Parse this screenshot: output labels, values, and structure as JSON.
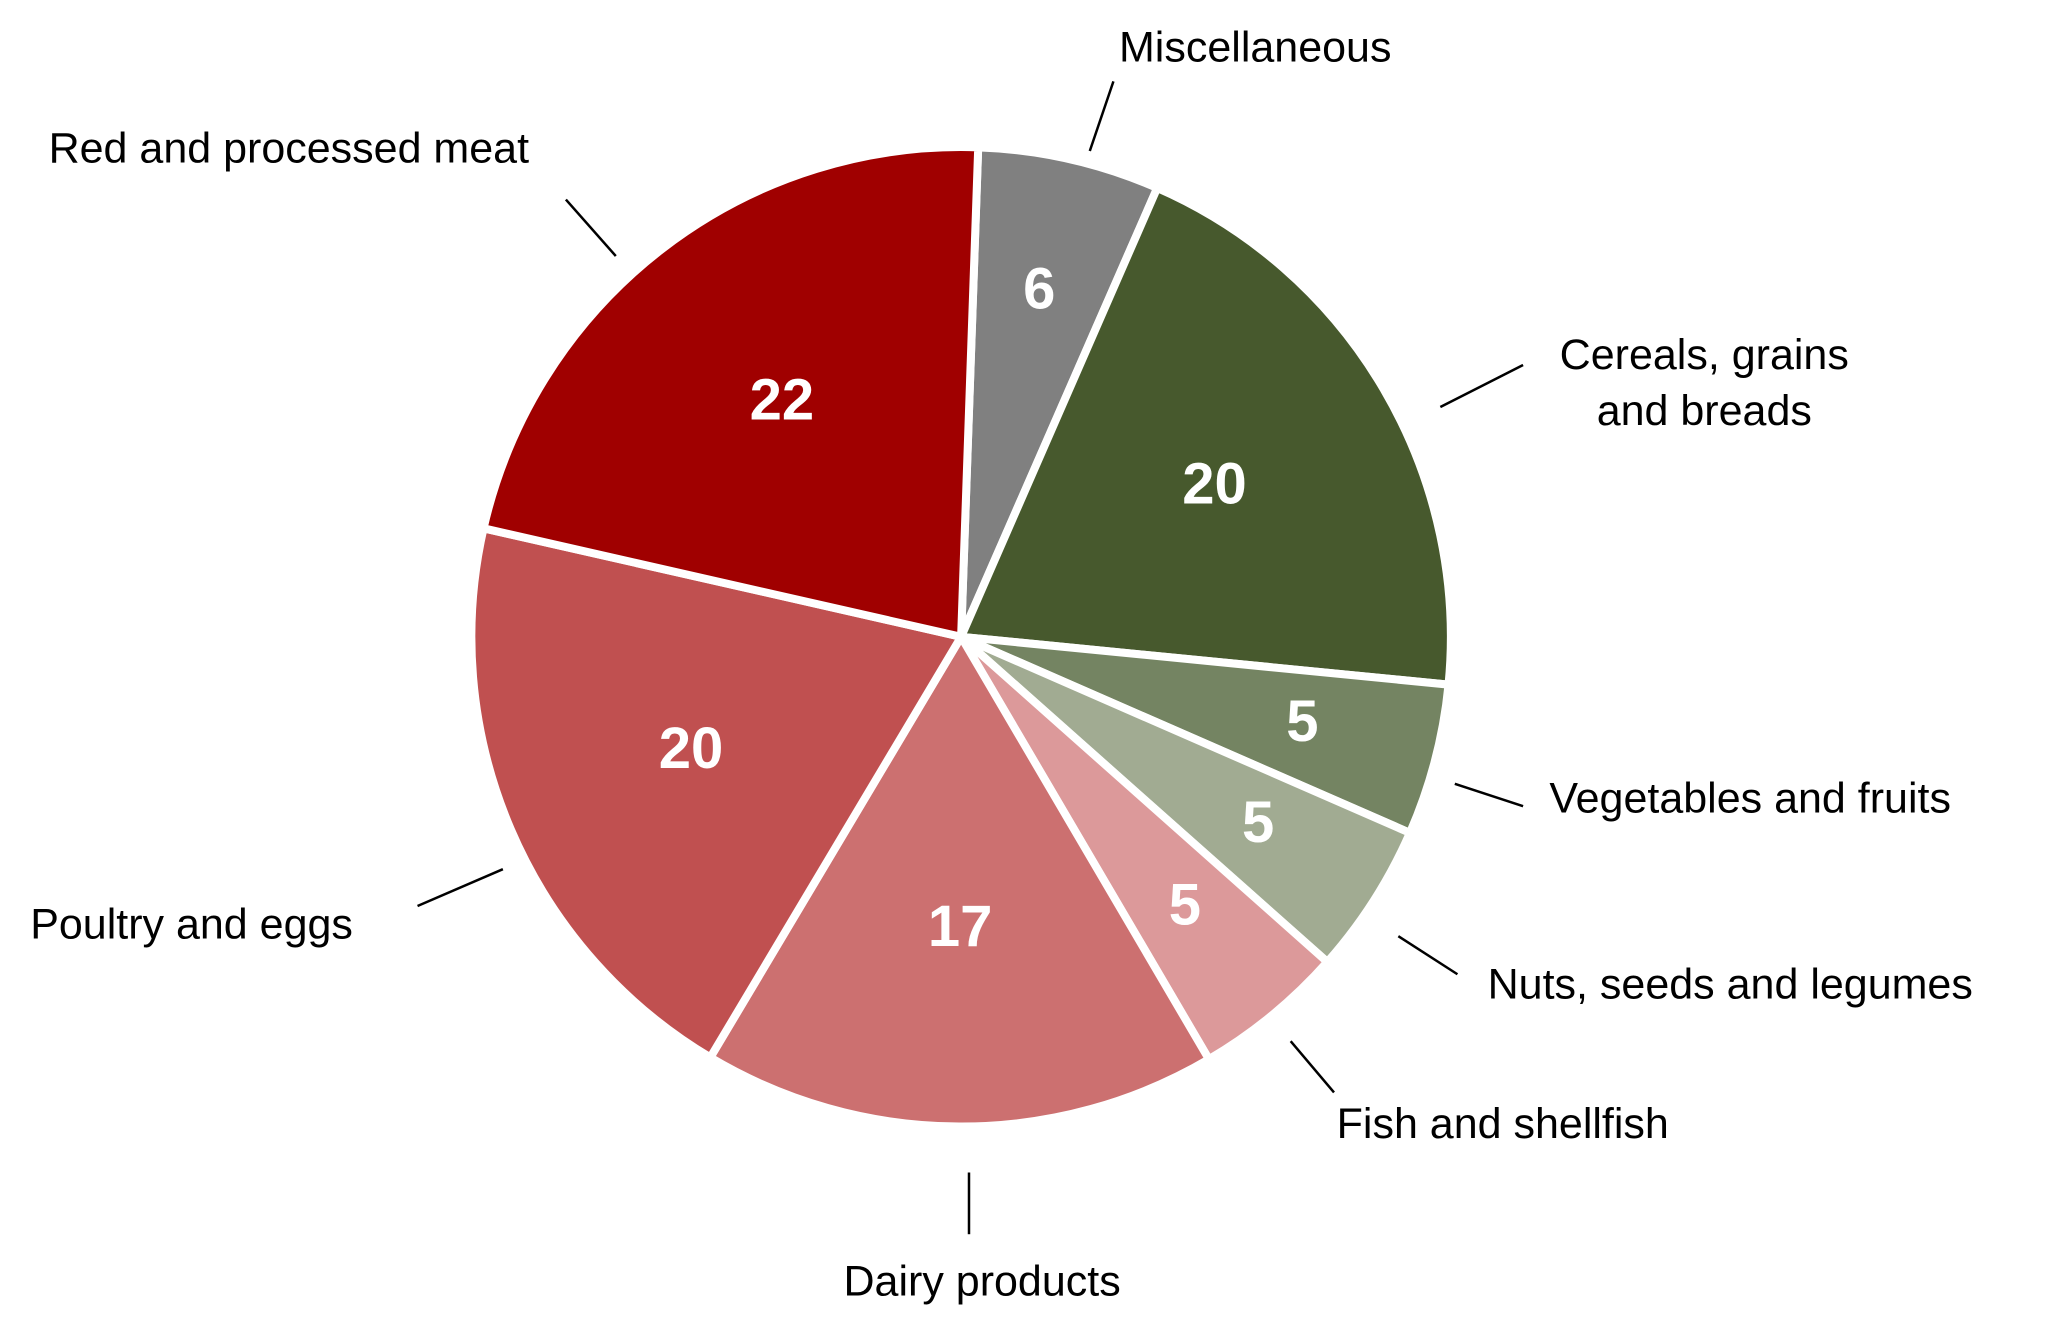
{
  "chart_data": {
    "type": "pie",
    "categories": [
      "Miscellaneous",
      "Cereals, grains and breads",
      "Vegetables and fruits",
      "Nuts, seeds and legumes",
      "Fish and shellfish",
      "Dairy products",
      "Poultry and eggs",
      "Red and processed meat"
    ],
    "values": [
      6,
      20,
      5,
      5,
      5,
      17,
      20,
      22
    ],
    "colors": [
      "#808080",
      "#47592d",
      "#748462",
      "#a1ab92",
      "#dc999a",
      "#cc7070",
      "#c05050",
      "#a00000"
    ]
  }
}
